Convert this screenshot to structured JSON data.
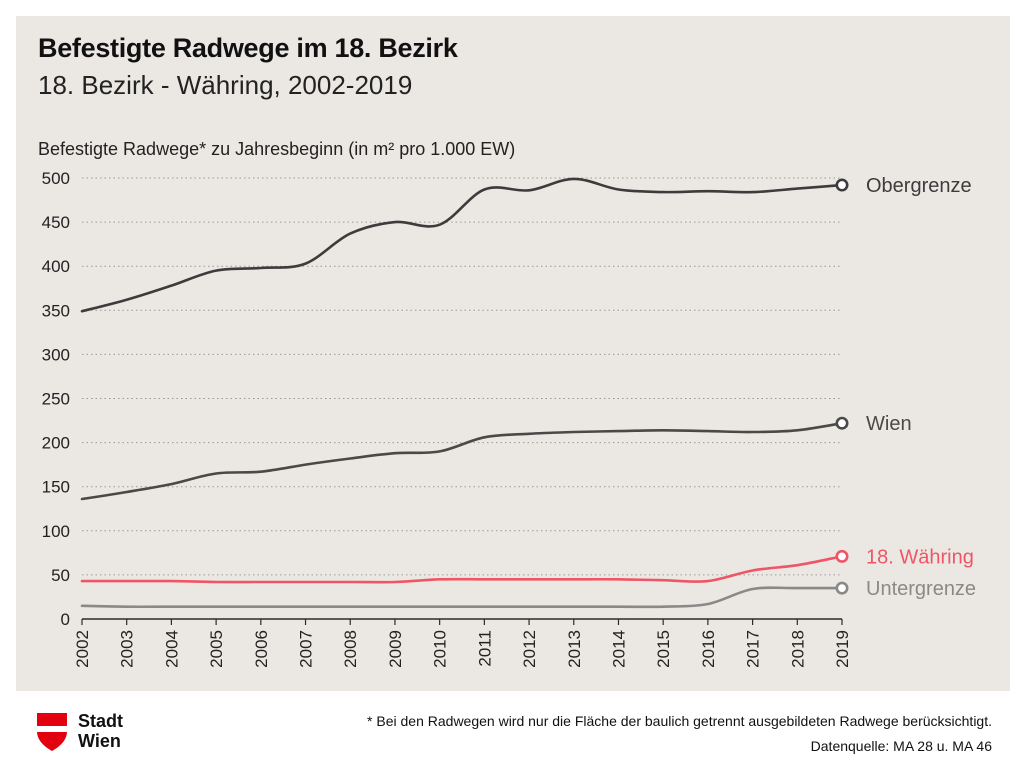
{
  "header": {
    "title": "Befestigte Radwege im 18. Bezirk",
    "subtitle": "18. Bezirk - Währing, 2002-2019"
  },
  "chart_data": {
    "type": "line",
    "title": "Befestigte Radwege im 18. Bezirk",
    "subtitle": "18. Bezirk - Währing, 2002-2019",
    "ylabel": "Befestigte Radwege* zu Jahresbeginn (in m² pro 1.000 EW)",
    "xlabel": "",
    "ylim": [
      0,
      500
    ],
    "yticks": [
      0,
      50,
      100,
      150,
      200,
      250,
      300,
      350,
      400,
      450,
      500
    ],
    "grid": "horizontal-dotted",
    "legend": "line-end labels",
    "x": [
      "2002",
      "2003",
      "2004",
      "2005",
      "2006",
      "2007",
      "2008",
      "2009",
      "2010",
      "2011",
      "2012",
      "2013",
      "2014",
      "2015",
      "2016",
      "2017",
      "2018",
      "2019"
    ],
    "series": [
      {
        "name": "Obergrenze",
        "color": "#3d3c3c",
        "values": [
          349,
          362,
          378,
          395,
          398,
          403,
          437,
          450,
          447,
          487,
          486,
          499,
          487,
          484,
          485,
          484,
          488,
          492
        ]
      },
      {
        "name": "Wien",
        "color": "#4a4948",
        "values": [
          136,
          144,
          153,
          165,
          167,
          175,
          182,
          188,
          190,
          206,
          210,
          212,
          213,
          214,
          213,
          212,
          214,
          222
        ]
      },
      {
        "name": "18. Währing",
        "color": "#ef5565",
        "values": [
          43,
          43,
          43,
          42,
          42,
          42,
          42,
          42,
          45,
          45,
          45,
          45,
          45,
          44,
          43,
          55,
          61,
          71
        ]
      },
      {
        "name": "Untergrenze",
        "color": "#8a8988",
        "values": [
          15,
          14,
          14,
          14,
          14,
          14,
          14,
          14,
          14,
          14,
          14,
          14,
          14,
          14,
          17,
          34,
          35,
          35
        ]
      }
    ]
  },
  "footer": {
    "logo_line1": "Stadt",
    "logo_line2": "Wien",
    "note": "* Bei den Radwegen wird nur die Fläche der baulich getrennt ausgebildeten Radwege berücksichtigt.",
    "source": "Datenquelle: MA 28 u. MA 46"
  }
}
